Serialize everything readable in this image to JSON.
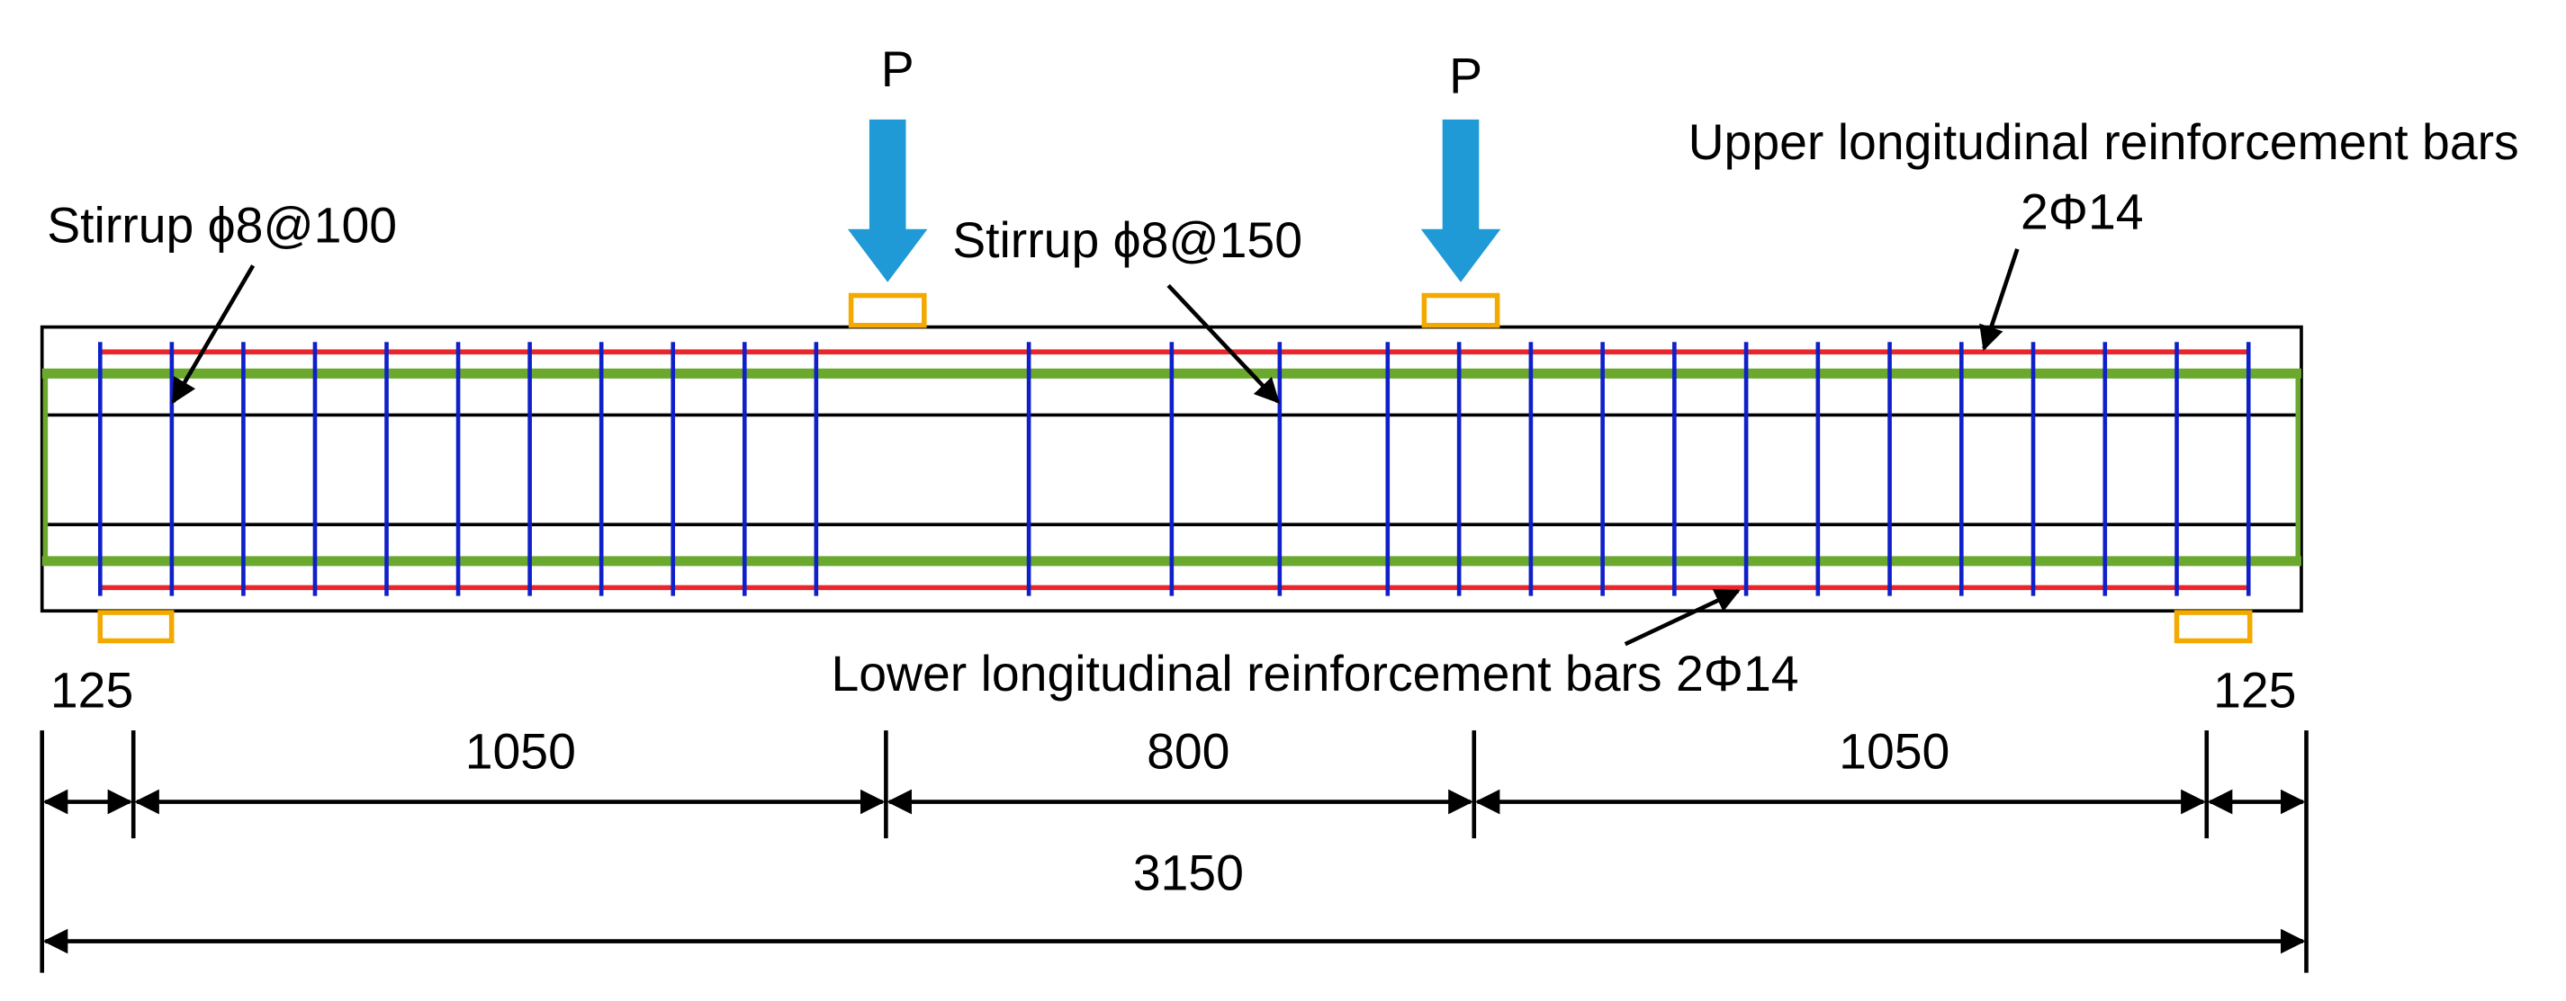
{
  "loads": [
    {
      "label": "P"
    },
    {
      "label": "P"
    }
  ],
  "annotations": {
    "stirrup_end": "Stirrup ϕ8@100",
    "stirrup_mid": "Stirrup ϕ8@150",
    "upper_bars": "Upper longitudinal reinforcement bars",
    "upper_bars_spec": "2Φ14",
    "lower_bars": "Lower longitudinal reinforcement bars 2Φ14"
  },
  "dimensions": {
    "left_overhang": "125",
    "left_shear_span": "1050",
    "middle_span": "800",
    "right_shear_span": "1050",
    "right_overhang": "125",
    "total_length": "3150"
  }
}
